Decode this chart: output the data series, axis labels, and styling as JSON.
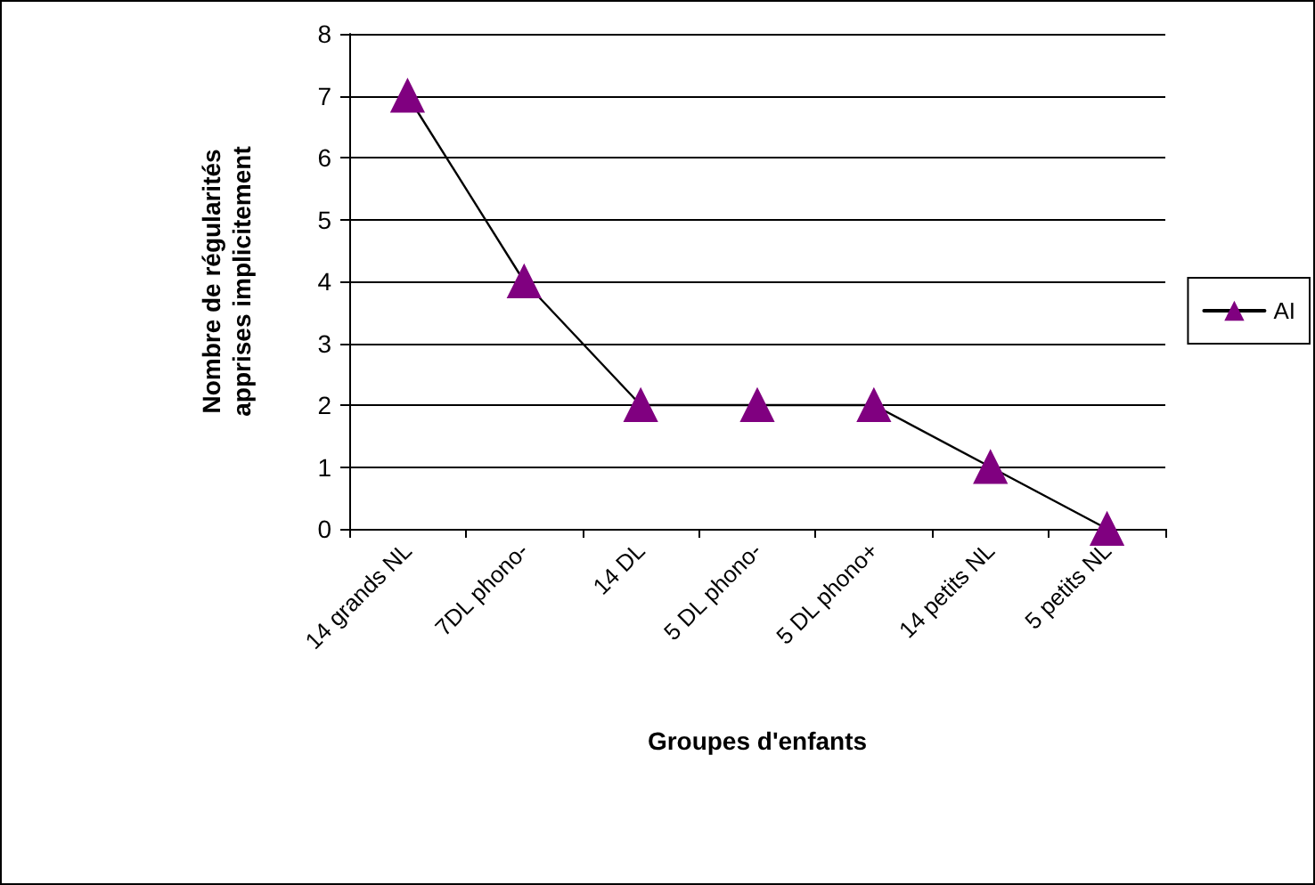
{
  "chart_data": {
    "type": "line",
    "xlabel": "Groupes d'enfants",
    "ylabel": "Nombre de régularités apprises implicitement",
    "categories": [
      "14 grands NL",
      "7DL phono-",
      "14 DL",
      "5 DL phono-",
      "5 DL phono+",
      "14 petits NL",
      "5 petits NL"
    ],
    "series": [
      {
        "name": "AI",
        "color": "#800080",
        "values": [
          7,
          4,
          2,
          2,
          2,
          1,
          0
        ]
      }
    ],
    "ylim": [
      0,
      8
    ],
    "yticks": [
      0,
      1,
      2,
      3,
      4,
      5,
      6,
      7,
      8
    ],
    "grid": "y",
    "legend": "right",
    "marker": "triangle",
    "line_style": "solid"
  }
}
